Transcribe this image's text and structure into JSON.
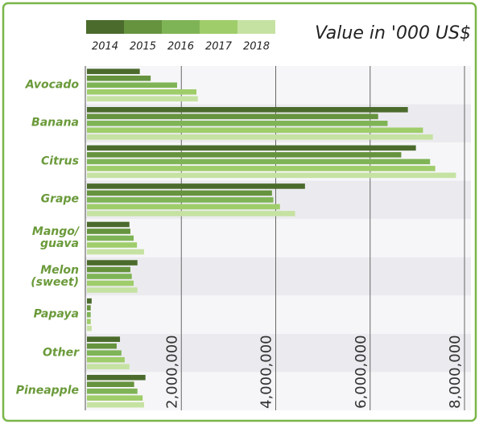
{
  "chart_data": {
    "type": "bar",
    "orientation": "horizontal",
    "title": "Value in '000 US$",
    "categories": [
      "Avocado",
      "Banana",
      "Citrus",
      "Grape",
      "Mango/\nguava",
      "Melon\n(sweet)",
      "Papaya",
      "Other",
      "Pineapple"
    ],
    "series": [
      {
        "name": "2014",
        "color": "#4b6b2c",
        "values": [
          1120000,
          6800000,
          6970000,
          4620000,
          900000,
          1070000,
          100000,
          700000,
          1240000
        ]
      },
      {
        "name": "2015",
        "color": "#66933e",
        "values": [
          1350000,
          6170000,
          6660000,
          3920000,
          920000,
          920000,
          80000,
          630000,
          1000000
        ]
      },
      {
        "name": "2016",
        "color": "#7fb456",
        "values": [
          1910000,
          6370000,
          7270000,
          3950000,
          990000,
          950000,
          80000,
          730000,
          1070000
        ]
      },
      {
        "name": "2017",
        "color": "#9fcd6a",
        "values": [
          2320000,
          7120000,
          7380000,
          4090000,
          1060000,
          990000,
          80000,
          800000,
          1180000
        ]
      },
      {
        "name": "2018",
        "color": "#c6e2a2",
        "values": [
          2350000,
          7330000,
          7820000,
          4410000,
          1210000,
          1070000,
          100000,
          900000,
          1210000
        ]
      }
    ],
    "xlim": [
      0,
      8000000
    ],
    "xticks": [
      {
        "value": 2000000,
        "label": "2,000,000"
      },
      {
        "value": 4000000,
        "label": "4,000,000"
      },
      {
        "value": 6000000,
        "label": "6,000,000"
      },
      {
        "value": 8000000,
        "label": "8,000,000"
      }
    ],
    "grid": true
  }
}
